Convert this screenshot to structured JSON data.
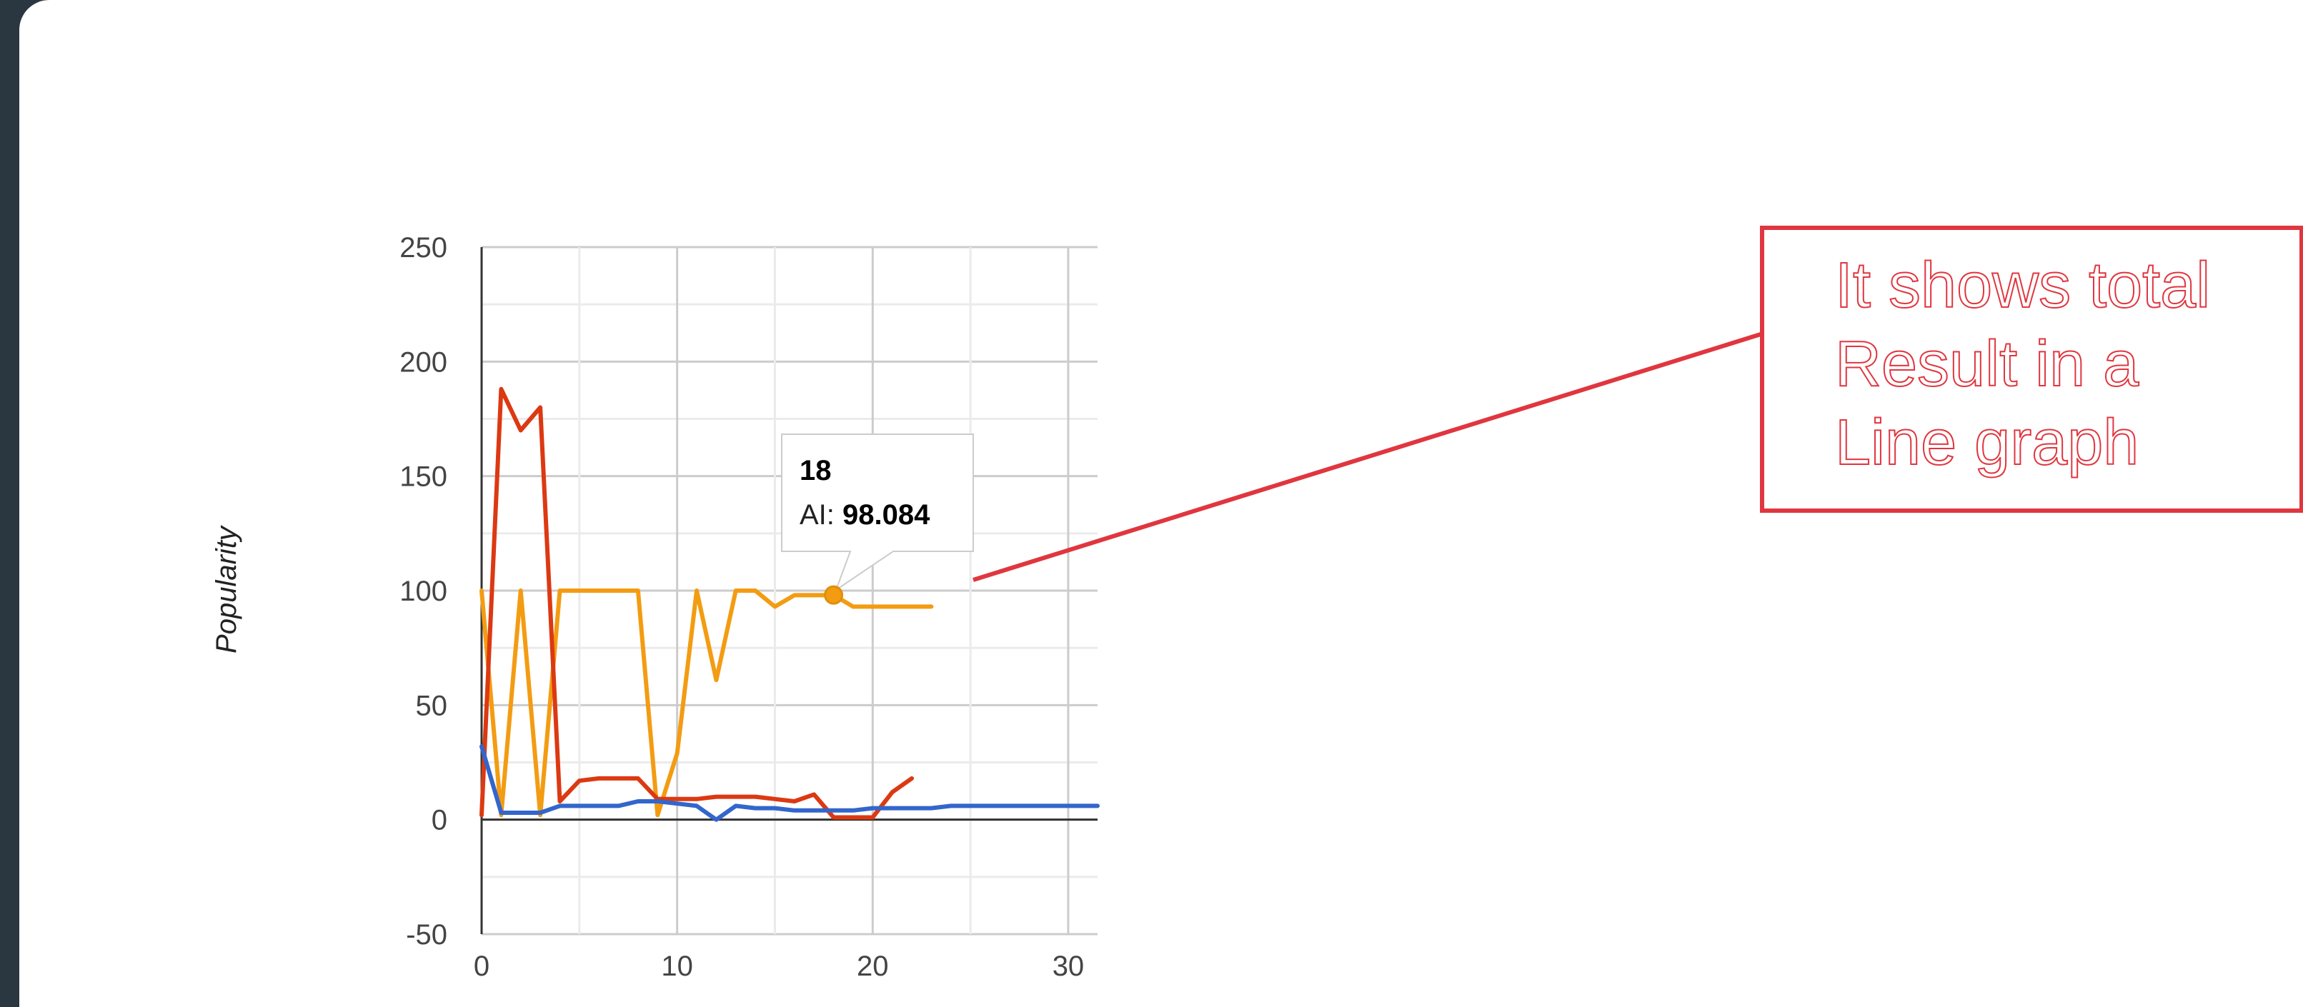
{
  "chart_data": {
    "type": "line",
    "title": "",
    "xlabel": "",
    "ylabel": "Popularity",
    "xlim": [
      0,
      31.5
    ],
    "ylim": [
      -50,
      250
    ],
    "x_ticks": [
      "0",
      "10",
      "20",
      "30"
    ],
    "y_ticks": [
      "250",
      "200",
      "150",
      "100",
      "50",
      "0",
      "-50"
    ],
    "grid": true,
    "legend": "none",
    "series": [
      {
        "color": "#f39c12",
        "points": [
          [
            0,
            100
          ],
          [
            1,
            2
          ],
          [
            2,
            100
          ],
          [
            3,
            2
          ],
          [
            4,
            100
          ],
          [
            5,
            100
          ],
          [
            6,
            100
          ],
          [
            7,
            100
          ],
          [
            8,
            100
          ],
          [
            9,
            2
          ],
          [
            10,
            29
          ],
          [
            11,
            100
          ],
          [
            12,
            61
          ],
          [
            13,
            100
          ],
          [
            14,
            100
          ],
          [
            15,
            93
          ],
          [
            16,
            98
          ],
          [
            17,
            98
          ],
          [
            18,
            98.084
          ],
          [
            19,
            93
          ],
          [
            20,
            93
          ],
          [
            21,
            93
          ],
          [
            22,
            93
          ],
          [
            23,
            93
          ]
        ]
      },
      {
        "color": "#dc3912",
        "points": [
          [
            0,
            2
          ],
          [
            1,
            188
          ],
          [
            2,
            170
          ],
          [
            3,
            180
          ],
          [
            4,
            8
          ],
          [
            5,
            17
          ],
          [
            6,
            18
          ],
          [
            7,
            18
          ],
          [
            8,
            18
          ],
          [
            9,
            9
          ],
          [
            10,
            9
          ],
          [
            11,
            9
          ],
          [
            12,
            10
          ],
          [
            13,
            10
          ],
          [
            14,
            10
          ],
          [
            15,
            9
          ],
          [
            16,
            8
          ],
          [
            17,
            11
          ],
          [
            18,
            1
          ],
          [
            19,
            1
          ],
          [
            20,
            1
          ],
          [
            21,
            12
          ],
          [
            22,
            18
          ]
        ]
      },
      {
        "color": "#3366cc",
        "points": [
          [
            0,
            32
          ],
          [
            1,
            3
          ],
          [
            2,
            3
          ],
          [
            3,
            3
          ],
          [
            4,
            6
          ],
          [
            5,
            6
          ],
          [
            6,
            6
          ],
          [
            7,
            6
          ],
          [
            8,
            8
          ],
          [
            9,
            8
          ],
          [
            10,
            7
          ],
          [
            11,
            6
          ],
          [
            12,
            0
          ],
          [
            13,
            6
          ],
          [
            14,
            5
          ],
          [
            15,
            5
          ],
          [
            16,
            4
          ],
          [
            17,
            4
          ],
          [
            18,
            4
          ],
          [
            19,
            4
          ],
          [
            20,
            5
          ],
          [
            21,
            5
          ],
          [
            22,
            5
          ],
          [
            23,
            5
          ],
          [
            24,
            6
          ],
          [
            25,
            6
          ],
          [
            26,
            6
          ],
          [
            27,
            6
          ],
          [
            28,
            6
          ],
          [
            29,
            6
          ],
          [
            30,
            6
          ],
          [
            31,
            6
          ],
          [
            31.5,
            6
          ]
        ]
      }
    ]
  },
  "tooltip": {
    "x_value": "18",
    "series_label": "AI: ",
    "value": "98.084"
  },
  "annotation": {
    "line1": "It shows total",
    "line2": "Result in a",
    "line3": "Line graph",
    "color": "#e0363f"
  }
}
